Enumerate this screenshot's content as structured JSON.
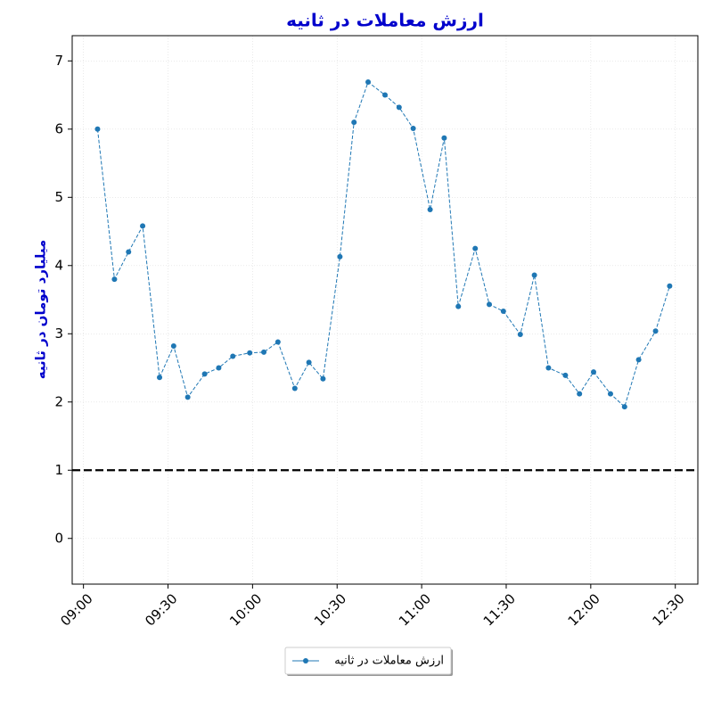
{
  "chart_data": {
    "type": "line",
    "title": "ارزش معاملات در ثانیه",
    "y_label": "میلیارد تومان در ثانیه",
    "x": [
      "09:05",
      "09:11",
      "09:16",
      "09:21",
      "09:27",
      "09:32",
      "09:37",
      "09:43",
      "09:48",
      "09:53",
      "09:59",
      "10:04",
      "10:09",
      "10:15",
      "10:20",
      "10:25",
      "10:31",
      "10:36",
      "10:41",
      "10:47",
      "10:52",
      "10:57",
      "11:03",
      "11:08",
      "11:13",
      "11:19",
      "11:24",
      "11:29",
      "11:35",
      "11:40",
      "11:45",
      "11:51",
      "11:56",
      "12:01",
      "12:07",
      "12:12",
      "12:17",
      "12:23",
      "12:28"
    ],
    "series": [
      {
        "name": "ارزش معاملات در ثانیه",
        "color": "#1f77b4",
        "values": [
          6.0,
          3.8,
          4.2,
          4.58,
          2.36,
          2.82,
          2.07,
          2.41,
          2.5,
          2.67,
          2.72,
          2.73,
          2.88,
          2.2,
          2.58,
          2.34,
          4.13,
          6.1,
          6.69,
          6.5,
          6.32,
          6.01,
          4.82,
          5.87,
          3.4,
          4.25,
          3.43,
          3.33,
          2.99,
          3.86,
          2.5,
          2.39,
          2.12,
          2.44,
          2.12,
          1.93,
          2.62,
          3.04,
          3.7
        ]
      }
    ],
    "hline": 1,
    "xlim": [
      "08:56",
      "12:38"
    ],
    "xticks": [
      "09:00",
      "09:30",
      "10:00",
      "10:30",
      "11:00",
      "11:30",
      "12:00",
      "12:30"
    ],
    "ylim": [
      -0.67,
      7.37
    ],
    "yticks": [
      0,
      1,
      2,
      3,
      4,
      5,
      6,
      7
    ],
    "grid": true,
    "legend": "bottom"
  }
}
